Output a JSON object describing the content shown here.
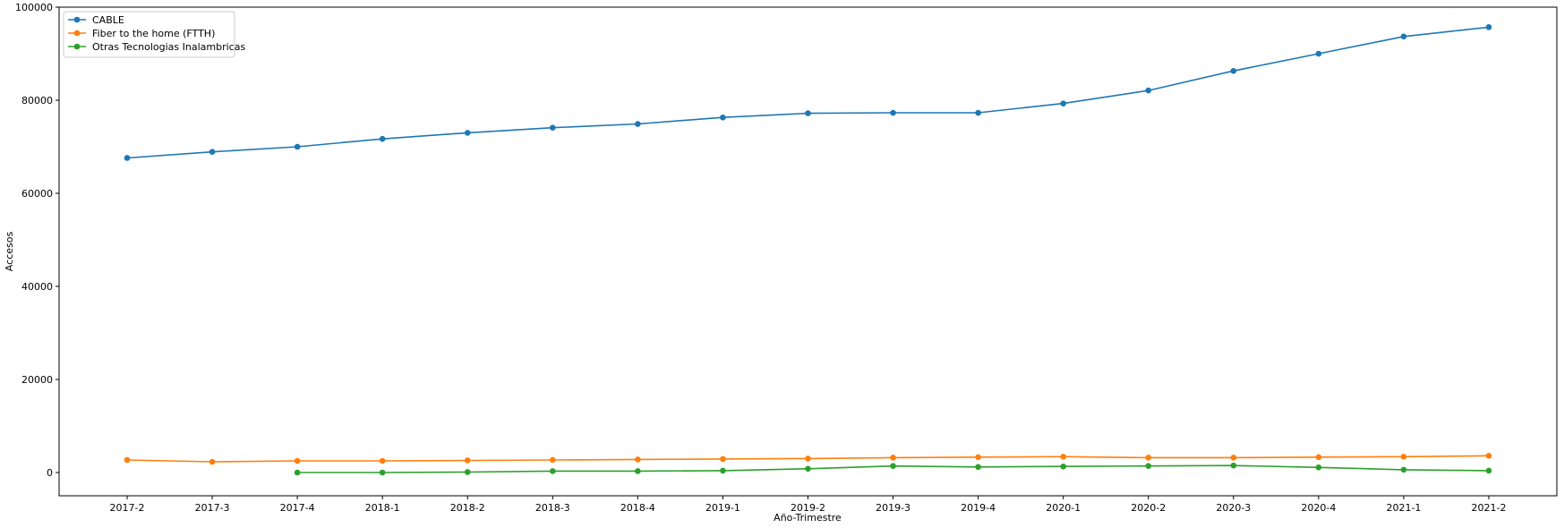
{
  "chart_data": {
    "type": "line",
    "title": "",
    "xlabel": "Año-Trimestre",
    "ylabel": "Accesos",
    "ylim": [
      -5000,
      100000
    ],
    "yticks": [
      0,
      20000,
      40000,
      60000,
      80000,
      100000
    ],
    "categories": [
      "2017-2",
      "2017-3",
      "2017-4",
      "2018-1",
      "2018-2",
      "2018-3",
      "2018-4",
      "2019-1",
      "2019-2",
      "2019-3",
      "2019-4",
      "2020-1",
      "2020-2",
      "2020-3",
      "2020-4",
      "2021-1",
      "2021-2"
    ],
    "legend_position": "top-left",
    "grid": false,
    "series": [
      {
        "name": "CABLE",
        "color": "#1f77b4",
        "values": [
          67600,
          68900,
          70000,
          71700,
          73000,
          74100,
          74900,
          76300,
          77200,
          77300,
          77300,
          79300,
          82100,
          86300,
          90000,
          93700,
          95700
        ]
      },
      {
        "name": "Fiber to the home (FTTH)",
        "color": "#ff7f0e",
        "values": [
          2700,
          2300,
          2500,
          2500,
          2600,
          2700,
          2800,
          2900,
          3000,
          3200,
          3300,
          3400,
          3200,
          3200,
          3300,
          3400,
          3600
        ]
      },
      {
        "name": "Otras Tecnologias Inalambricas",
        "color": "#2ca02c",
        "values": [
          null,
          null,
          0,
          0,
          100,
          300,
          300,
          400,
          800,
          1400,
          1200,
          1300,
          1400,
          1500,
          1100,
          600,
          400
        ]
      }
    ]
  }
}
